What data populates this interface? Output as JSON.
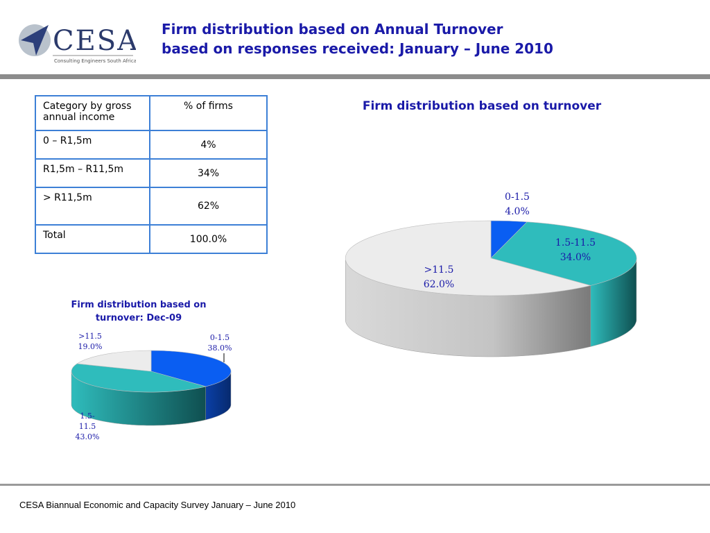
{
  "header": {
    "logo_text": "CESA",
    "logo_tagline": "Consulting Engineers South Africa",
    "title_line1": "Firm distribution based on Annual Turnover",
    "title_line2": "based on responses received: January – June 2010"
  },
  "table": {
    "headers": [
      "Category by gross annual income",
      "% of firms"
    ],
    "rows": [
      [
        "0 – R1,5m",
        "4%"
      ],
      [
        "R1,5m – R11,5m",
        "34%"
      ],
      [
        "> R11,5m",
        "62%"
      ],
      [
        "Total",
        "100.0%"
      ]
    ]
  },
  "chart_data": [
    {
      "type": "pie",
      "title": "Firm distribution based on turnover",
      "slices": [
        {
          "label": "0-1.5",
          "value": 4.0,
          "pct_label": "4.0%",
          "color": "#0a5ef2"
        },
        {
          "label": "1.5-11.5",
          "value": 34.0,
          "pct_label": "34.0%",
          "color": "#2fbcbc"
        },
        {
          "label": ">11.5",
          "value": 62.0,
          "pct_label": "62.0%",
          "color": "#ececec"
        }
      ]
    },
    {
      "type": "pie",
      "title": "Firm distribution based on turnover: Dec-09",
      "slices": [
        {
          "label": "0-1.5",
          "value": 38.0,
          "pct_label": "38.0%",
          "color": "#0a5ef2"
        },
        {
          "label": "1.5-11.5",
          "value": 43.0,
          "pct_label": "43.0%",
          "color": "#2fbcbc"
        },
        {
          "label": ">11.5",
          "value": 19.0,
          "pct_label": "19.0%",
          "color": "#ececec"
        }
      ]
    }
  ],
  "footer": {
    "text": "CESA Biannual Economic and Capacity Survey January – June 2010"
  }
}
